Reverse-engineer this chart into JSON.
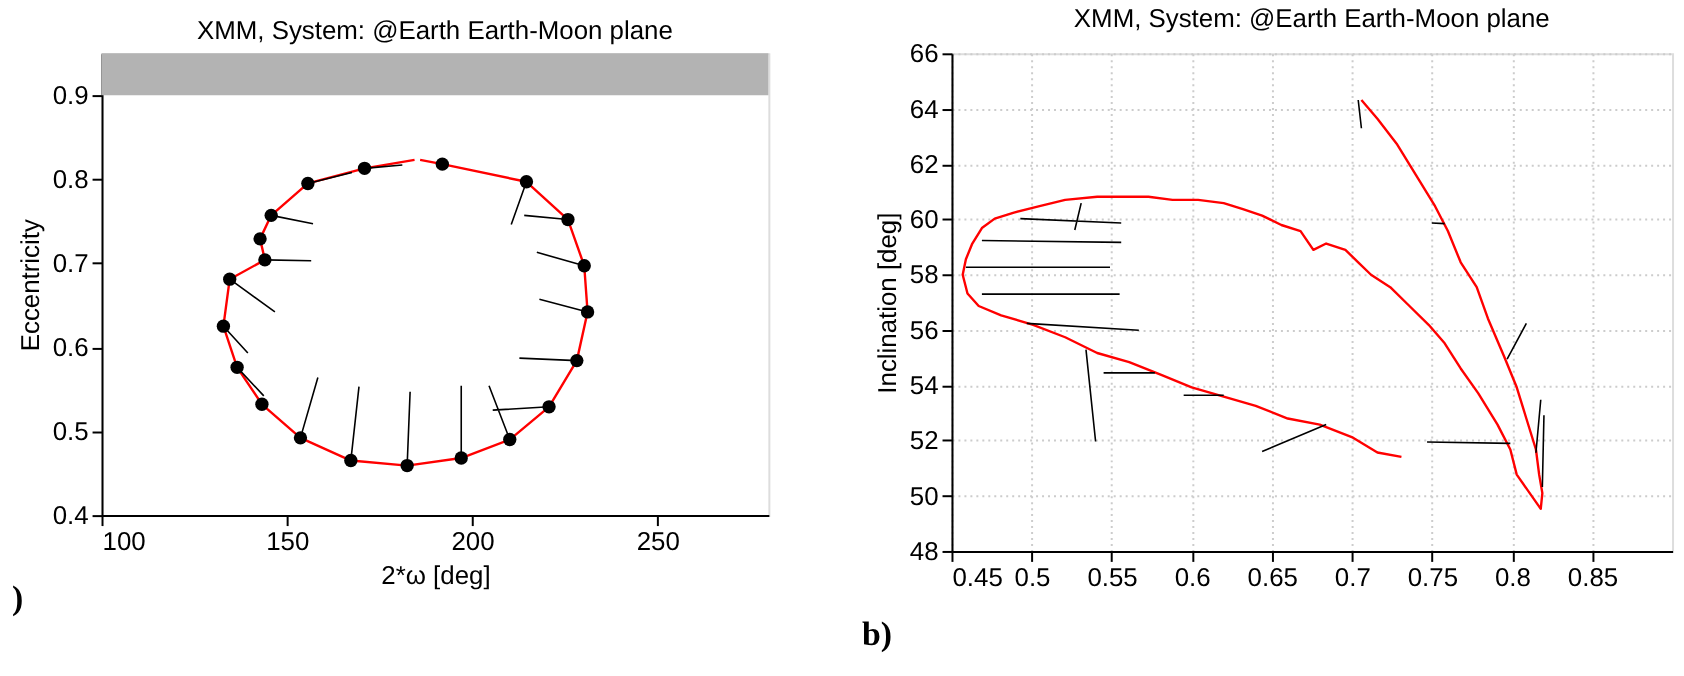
{
  "chart_data": [
    {
      "type": "line",
      "title": "XMM, System: @Earth Earth-Moon plane",
      "xlabel": "2*ω [deg]",
      "ylabel": "Eccentricity",
      "xlim": [
        100,
        280
      ],
      "xticks": [
        100,
        150,
        200,
        250
      ],
      "ylim": [
        0.4,
        0.95
      ],
      "yticks": [
        0.4,
        0.5,
        0.6,
        0.7,
        0.8,
        0.9
      ],
      "grid": false,
      "bands": [
        {
          "axis": "y",
          "from": 0.9,
          "to": 0.95,
          "color": "#b3b3b3"
        }
      ],
      "annotations": [
        ")"
      ],
      "series": [
        {
          "type": "line",
          "color": "#ff0000",
          "line_style": "solid",
          "x": [
            186.0,
            192.0,
            214.7,
            225.9,
            230.3,
            231.2,
            228.3,
            220.8,
            210.2,
            197.1,
            182.5,
            167.3,
            153.7,
            143.3,
            136.6,
            132.9,
            134.6,
            144.1,
            142.8,
            145.8,
            155.7,
            171.0,
            184.5
          ],
          "values": [
            0.823,
            0.818,
            0.797,
            0.752,
            0.697,
            0.642,
            0.584,
            0.529,
            0.49,
            0.468,
            0.459,
            0.465,
            0.492,
            0.532,
            0.576,
            0.625,
            0.681,
            0.704,
            0.729,
            0.757,
            0.795,
            0.813,
            0.823
          ]
        },
        {
          "type": "line",
          "color": "#000000",
          "line_style": "solid",
          "x": [
            171.0,
            181.2,
            null,
            155.7,
            167.6,
            null,
            214.7,
            210.6,
            null,
            225.9,
            214.1,
            null,
            230.3,
            217.5,
            null,
            231.2,
            218.2,
            null,
            228.3,
            212.8,
            null,
            220.8,
            205.6,
            null,
            210.2,
            204.6,
            null,
            197.1,
            197.1,
            null,
            182.5,
            183.3,
            null,
            167.3,
            169.5,
            null,
            153.7,
            158.4,
            null,
            136.6,
            143.8,
            null,
            132.9,
            139.5,
            null,
            134.6,
            146.8,
            null,
            144.1,
            156.6,
            null,
            145.8,
            157.1
          ],
          "values": [
            0.813,
            0.817,
            null,
            0.795,
            0.808,
            null,
            0.797,
            0.746,
            null,
            0.752,
            0.757,
            null,
            0.697,
            0.713,
            null,
            0.642,
            0.657,
            null,
            0.584,
            0.587,
            null,
            0.529,
            0.525,
            null,
            0.49,
            0.554,
            null,
            0.468,
            0.554,
            null,
            0.459,
            0.547,
            null,
            0.465,
            0.553,
            null,
            0.492,
            0.564,
            null,
            0.576,
            0.542,
            null,
            0.625,
            0.593,
            null,
            0.681,
            0.642,
            null,
            0.704,
            0.703,
            null,
            0.757,
            0.747
          ]
        },
        {
          "type": "scatter",
          "color": "#000000",
          "marker": "circle",
          "x": [
            192.0,
            214.7,
            225.9,
            230.3,
            231.2,
            228.3,
            220.8,
            210.2,
            197.1,
            182.5,
            167.3,
            153.7,
            143.3,
            136.6,
            132.9,
            134.6,
            144.1,
            142.8,
            145.8,
            155.7,
            171.0
          ],
          "values": [
            0.818,
            0.797,
            0.752,
            0.697,
            0.642,
            0.584,
            0.529,
            0.49,
            0.468,
            0.459,
            0.465,
            0.492,
            0.532,
            0.576,
            0.625,
            0.681,
            0.704,
            0.729,
            0.757,
            0.795,
            0.813
          ]
        }
      ]
    },
    {
      "type": "line",
      "title": "XMM, System: @Earth Earth-Moon plane",
      "ylabel": "Inclination [deg]",
      "xlim": [
        0.45,
        0.9
      ],
      "xticks": [
        0.45,
        0.5,
        0.55,
        0.6,
        0.65,
        0.7,
        0.75,
        0.8,
        0.85
      ],
      "ylim": [
        48,
        66
      ],
      "yticks": [
        48,
        50,
        52,
        54,
        56,
        58,
        60,
        62,
        64,
        66
      ],
      "grid": true,
      "annotations": [
        "b)"
      ],
      "series": [
        {
          "type": "line",
          "color": "#ff0000",
          "line_style": "solid",
          "x": [
            0.706,
            0.716,
            0.728,
            0.74,
            0.752,
            0.76,
            0.768,
            0.778,
            0.785,
            0.795,
            0.803,
            0.809,
            0.815,
            0.817,
            0.819,
            0.818,
            0.803,
            0.799,
            0.791,
            0.779,
            0.768,
            0.758,
            0.748,
            0.736,
            0.724,
            0.712,
            0.704,
            0.696,
            0.684,
            0.676,
            0.668,
            0.656,
            0.644,
            0.632,
            0.62,
            0.604,
            0.588,
            0.573,
            0.557,
            0.541,
            0.521,
            0.505,
            0.489,
            0.477,
            0.469,
            0.463,
            0.459,
            0.457,
            0.46,
            0.467,
            0.481,
            0.501,
            0.521,
            0.541,
            0.561,
            0.581,
            0.6,
            0.62,
            0.64,
            0.66,
            0.68,
            0.7,
            0.716,
            0.731
          ],
          "values": [
            64.31,
            63.63,
            62.73,
            61.6,
            60.47,
            59.57,
            58.44,
            57.54,
            56.41,
            55.05,
            53.92,
            52.79,
            51.67,
            50.76,
            50.09,
            49.52,
            50.76,
            51.67,
            52.57,
            53.7,
            54.6,
            55.51,
            56.18,
            56.86,
            57.54,
            57.99,
            58.44,
            58.89,
            59.12,
            58.89,
            59.57,
            59.79,
            60.13,
            60.36,
            60.58,
            60.7,
            60.7,
            60.81,
            60.81,
            60.81,
            60.7,
            60.47,
            60.24,
            60.02,
            59.68,
            59.12,
            58.55,
            57.99,
            57.31,
            56.86,
            56.52,
            56.18,
            55.73,
            55.16,
            54.83,
            54.37,
            53.92,
            53.58,
            53.25,
            52.79,
            52.57,
            52.12,
            51.56,
            51.4
          ]
        },
        {
          "type": "line",
          "color": "#000000",
          "line_style": "solid",
          "x": [
            0.493,
            0.556,
            null,
            0.527,
            0.531,
            null,
            0.469,
            0.556,
            null,
            0.459,
            0.549,
            null,
            0.469,
            0.555,
            null,
            0.497,
            0.567,
            null,
            0.534,
            0.54,
            null,
            0.545,
            0.577,
            null,
            0.595,
            0.62,
            null,
            0.644,
            0.684,
            null,
            0.704,
            0.706,
            null,
            0.75,
            0.758,
            null,
            0.797,
            0.809,
            null,
            0.747,
            0.799,
            null,
            0.815,
            0.818,
            null,
            0.819,
            0.82
          ],
          "values": [
            60.02,
            59.86,
            null,
            59.61,
            60.58,
            null,
            59.23,
            59.16,
            null,
            58.26,
            58.26,
            null,
            57.29,
            57.29,
            null,
            56.23,
            55.98,
            null,
            55.28,
            51.96,
            null,
            54.44,
            54.44,
            null,
            53.63,
            53.63,
            null,
            51.6,
            52.57,
            null,
            64.31,
            63.29,
            null,
            59.86,
            59.84,
            null,
            54.94,
            56.23,
            null,
            51.94,
            51.89,
            null,
            51.55,
            53.47,
            null,
            50.31,
            52.91
          ]
        }
      ]
    }
  ]
}
